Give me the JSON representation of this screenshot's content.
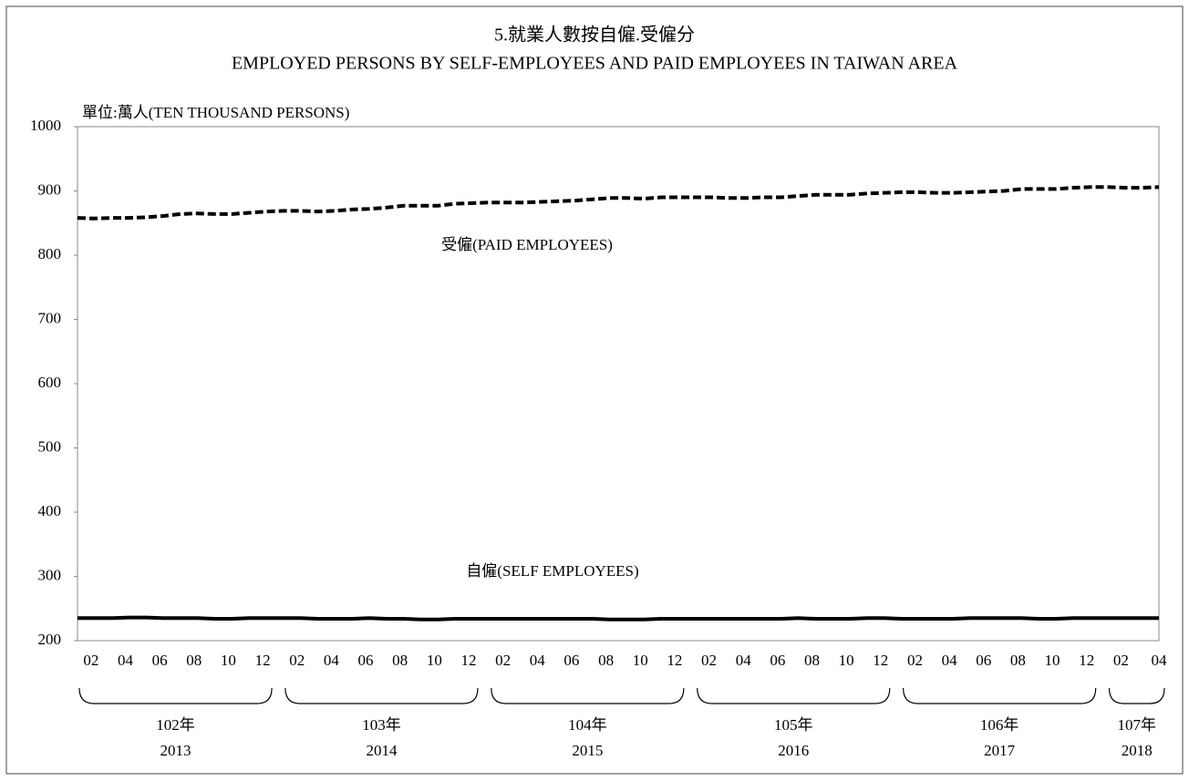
{
  "chart_data": {
    "type": "line",
    "title": "5.就業人數按自僱.受僱分",
    "subtitle": "EMPLOYED PERSONS BY SELF-EMPLOYEES AND PAID EMPLOYEES IN TAIWAN AREA",
    "y_axis_label": "單位:萬人(TEN THOUSAND PERSONS)",
    "categories": [
      null,
      "02",
      null,
      "04",
      null,
      "06",
      null,
      "08",
      null,
      "10",
      null,
      "12",
      null,
      "02",
      null,
      "04",
      null,
      "06",
      null,
      "08",
      null,
      "10",
      null,
      "12",
      null,
      "02",
      null,
      "04",
      null,
      "06",
      null,
      "08",
      null,
      "10",
      null,
      "12",
      null,
      "02",
      null,
      "04",
      null,
      "06",
      null,
      "08",
      null,
      "10",
      null,
      "12",
      null,
      "02",
      null,
      "04",
      null,
      "06",
      null,
      "08",
      null,
      "10",
      null,
      "12",
      null,
      "02",
      null,
      "04"
    ],
    "year_groups": [
      [
        "102年",
        "2013"
      ],
      [
        "103年",
        "2014"
      ],
      [
        "104年",
        "2015"
      ],
      [
        "105年",
        "2016"
      ],
      [
        "106年",
        "2017"
      ],
      [
        "107年",
        "2018"
      ]
    ],
    "series": [
      {
        "name": "受僱(PAID EMPLOYEES)",
        "color": "#000000",
        "dash": true,
        "values": [
          858,
          857,
          858,
          858,
          859,
          861,
          864,
          865,
          864,
          864,
          866,
          868,
          869,
          869,
          868,
          869,
          871,
          872,
          874,
          877,
          877,
          877,
          880,
          881,
          882,
          882,
          882,
          883,
          884,
          885,
          887,
          889,
          889,
          888,
          890,
          890,
          890,
          890,
          889,
          889,
          890,
          890,
          892,
          894,
          894,
          894,
          896,
          897,
          898,
          898,
          897,
          897,
          898,
          899,
          900,
          903,
          903,
          903,
          905,
          906,
          906,
          905,
          905,
          906
        ]
      },
      {
        "name": "自僱(SELF EMPLOYEES)",
        "color": "#000000",
        "dash": false,
        "values": [
          235,
          235,
          235,
          236,
          236,
          235,
          235,
          235,
          234,
          234,
          235,
          235,
          235,
          235,
          234,
          234,
          234,
          235,
          234,
          234,
          233,
          233,
          234,
          234,
          234,
          234,
          234,
          234,
          234,
          234,
          234,
          233,
          233,
          233,
          234,
          234,
          234,
          234,
          234,
          234,
          234,
          234,
          235,
          234,
          234,
          234,
          235,
          235,
          234,
          234,
          234,
          234,
          235,
          235,
          235,
          235,
          234,
          234,
          235,
          235,
          235,
          235,
          235,
          235
        ]
      }
    ],
    "ylim": [
      200,
      1000
    ],
    "yticks": [
      200,
      300,
      400,
      500,
      600,
      700,
      800,
      900,
      1000
    ],
    "grid": false
  }
}
